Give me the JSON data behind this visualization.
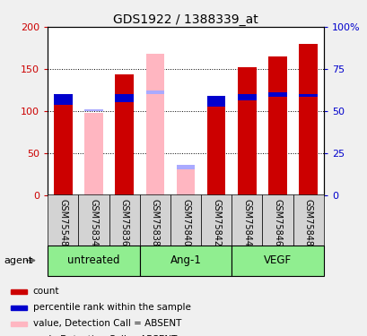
{
  "title": "GDS1922 / 1388339_at",
  "samples": [
    "GSM75548",
    "GSM75834",
    "GSM75836",
    "GSM75838",
    "GSM75840",
    "GSM75842",
    "GSM75844",
    "GSM75846",
    "GSM75848"
  ],
  "red_values": [
    120,
    0,
    143,
    0,
    0,
    118,
    152,
    165,
    180
  ],
  "pink_values": [
    0,
    98,
    0,
    168,
    30,
    0,
    0,
    0,
    0
  ],
  "blue_bottom": [
    107,
    0,
    110,
    0,
    0,
    105,
    113,
    117,
    117
  ],
  "blue_top": [
    120,
    0,
    120,
    0,
    0,
    118,
    120,
    122,
    120
  ],
  "lavender_bottom": [
    0,
    100,
    0,
    120,
    30,
    0,
    0,
    0,
    0
  ],
  "lavender_top": [
    0,
    102,
    0,
    124,
    36,
    0,
    0,
    0,
    0
  ],
  "group_info": [
    {
      "label": "untreated",
      "start": 0,
      "end": 2
    },
    {
      "label": "Ang-1",
      "start": 3,
      "end": 5
    },
    {
      "label": "VEGF",
      "start": 6,
      "end": 8
    }
  ],
  "ylim": [
    0,
    200
  ],
  "yticks_left": [
    0,
    50,
    100,
    150,
    200
  ],
  "yticks_right_labels": [
    "0",
    "25",
    "50",
    "75",
    "100%"
  ],
  "yticks_right_pos": [
    0,
    50,
    100,
    150,
    200
  ],
  "left_color": "#cc0000",
  "right_color": "#0000cc",
  "red_color": "#cc0000",
  "pink_color": "#FFB6C1",
  "blue_color": "#0000cd",
  "lavender_color": "#aaaaff",
  "bar_width": 0.6,
  "bg_color": "#f0f0f0",
  "plot_bg": "#ffffff",
  "label_bg": "#d3d3d3",
  "group_bg": "#90EE90",
  "legend_items": [
    {
      "label": "count",
      "color": "#cc0000"
    },
    {
      "label": "percentile rank within the sample",
      "color": "#0000cd"
    },
    {
      "label": "value, Detection Call = ABSENT",
      "color": "#FFB6C1"
    },
    {
      "label": "rank, Detection Call = ABSENT",
      "color": "#aaaaff"
    }
  ]
}
